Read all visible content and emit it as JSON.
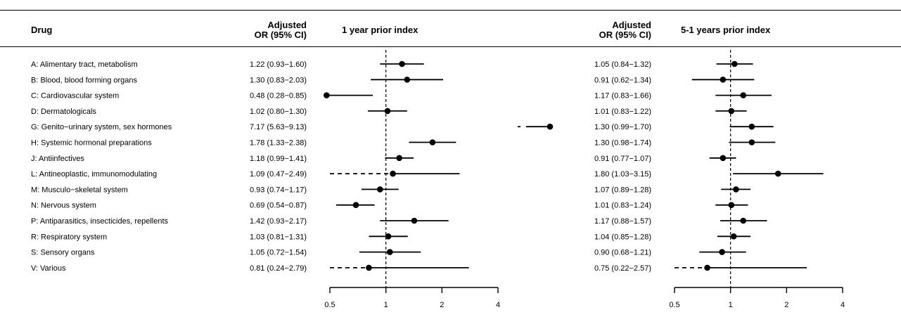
{
  "headers": {
    "drug": "Drug",
    "or_line1": "Adjusted",
    "or_line2": "OR (95% CI)",
    "panel1_title": "1 year prior index",
    "panel2_title": "5-1 years prior index"
  },
  "chart_data": {
    "type": "forest",
    "x_scale": "log2",
    "reference_line": 1,
    "xlim": [
      0.5,
      4
    ],
    "x_ticks": [
      0.5,
      1,
      2,
      4
    ],
    "x_tick_labels": [
      "0.5",
      "1",
      "2",
      "4"
    ],
    "rows": [
      {
        "label": "A: Alimentary tract, metabolism",
        "p1": {
          "text": "1.22 (0.93−1.60)",
          "or": 1.22,
          "lo": 0.93,
          "hi": 1.6
        },
        "p2": {
          "text": "1.05 (0.84−1.32)",
          "or": 1.05,
          "lo": 0.84,
          "hi": 1.32
        }
      },
      {
        "label": "B:  Blood, blood forming organs",
        "p1": {
          "text": "1.30 (0.83−2.03)",
          "or": 1.3,
          "lo": 0.83,
          "hi": 2.03
        },
        "p2": {
          "text": "0.91 (0.62−1.34)",
          "or": 0.91,
          "lo": 0.62,
          "hi": 1.34
        }
      },
      {
        "label": "C: Cardiovascular system",
        "p1": {
          "text": "0.48 (0.28−0.85)",
          "or": 0.48,
          "lo": 0.28,
          "hi": 0.85
        },
        "p2": {
          "text": "1.17 (0.83−1.66)",
          "or": 1.17,
          "lo": 0.83,
          "hi": 1.66
        }
      },
      {
        "label": "D: Dermatologicals",
        "p1": {
          "text": "1.02 (0.80−1.30)",
          "or": 1.02,
          "lo": 0.8,
          "hi": 1.3
        },
        "p2": {
          "text": "1.01 (0.83−1.22)",
          "or": 1.01,
          "lo": 0.83,
          "hi": 1.22
        }
      },
      {
        "label": "G:  Genito−urinary system, sex hormones",
        "p1": {
          "text": "7.17 (5.63−9.13)",
          "or": 7.17,
          "lo": 5.63,
          "hi": 9.13
        },
        "p2": {
          "text": "1.30 (0.99−1.70)",
          "or": 1.3,
          "lo": 0.99,
          "hi": 1.7
        }
      },
      {
        "label": "H: Systemic hormonal preparations",
        "p1": {
          "text": "1.78 (1.33−2.38)",
          "or": 1.78,
          "lo": 1.33,
          "hi": 2.38
        },
        "p2": {
          "text": "1.30 (0.98−1.74)",
          "or": 1.3,
          "lo": 0.98,
          "hi": 1.74
        }
      },
      {
        "label": "J: Antiinfectives",
        "p1": {
          "text": "1.18 (0.99−1.41)",
          "or": 1.18,
          "lo": 0.99,
          "hi": 1.41
        },
        "p2": {
          "text": "0.91 (0.77−1.07)",
          "or": 0.91,
          "lo": 0.77,
          "hi": 1.07
        }
      },
      {
        "label": "L: Antineoplastic, immunomodulating",
        "p1": {
          "text": "1.09 (0.47−2.49)",
          "or": 1.09,
          "lo": 0.47,
          "hi": 2.49
        },
        "p2": {
          "text": "1.80 (1.03−3.15)",
          "or": 1.8,
          "lo": 1.03,
          "hi": 3.15
        }
      },
      {
        "label": "M: Musculo−skeletal system",
        "p1": {
          "text": "0.93 (0.74−1.17)",
          "or": 0.93,
          "lo": 0.74,
          "hi": 1.17
        },
        "p2": {
          "text": "1.07 (0.89−1.28)",
          "or": 1.07,
          "lo": 0.89,
          "hi": 1.28
        }
      },
      {
        "label": "N: Nervous system",
        "p1": {
          "text": "0.69 (0.54−0.87)",
          "or": 0.69,
          "lo": 0.54,
          "hi": 0.87
        },
        "p2": {
          "text": "1.01 (0.83−1.24)",
          "or": 1.01,
          "lo": 0.83,
          "hi": 1.24
        }
      },
      {
        "label": "P: Antiparasitics, insecticides, repellents",
        "p1": {
          "text": "1.42 (0.93−2.17)",
          "or": 1.42,
          "lo": 0.93,
          "hi": 2.17
        },
        "p2": {
          "text": "1.17 (0.88−1.57)",
          "or": 1.17,
          "lo": 0.88,
          "hi": 1.57
        }
      },
      {
        "label": "R: Respiratory system",
        "p1": {
          "text": "1.03 (0.81−1.31)",
          "or": 1.03,
          "lo": 0.81,
          "hi": 1.31
        },
        "p2": {
          "text": "1.04 (0.85−1.28)",
          "or": 1.04,
          "lo": 0.85,
          "hi": 1.28
        }
      },
      {
        "label": "S:  Sensory organs",
        "p1": {
          "text": "1.05 (0.72−1.54)",
          "or": 1.05,
          "lo": 0.72,
          "hi": 1.54
        },
        "p2": {
          "text": "0.90 (0.68−1.21)",
          "or": 0.9,
          "lo": 0.68,
          "hi": 1.21
        }
      },
      {
        "label": "V: Various",
        "p1": {
          "text": "0.81 (0.24−2.79)",
          "or": 0.81,
          "lo": 0.24,
          "hi": 2.79
        },
        "p2": {
          "text": "0.75 (0.22−2.57)",
          "or": 0.75,
          "lo": 0.22,
          "hi": 2.57
        }
      }
    ]
  }
}
